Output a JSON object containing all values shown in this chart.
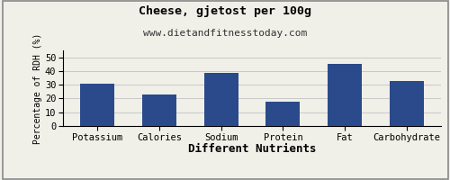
{
  "title": "Cheese, gjetost per 100g",
  "subtitle": "www.dietandfitnesstoday.com",
  "xlabel": "Different Nutrients",
  "ylabel": "Percentage of RDH (%)",
  "categories": [
    "Potassium",
    "Calories",
    "Sodium",
    "Protein",
    "Fat",
    "Carbohydrate"
  ],
  "values": [
    30.5,
    23.0,
    38.5,
    17.5,
    45.0,
    33.0
  ],
  "bar_color": "#2b4a8b",
  "ylim": [
    0,
    55
  ],
  "yticks": [
    0,
    10,
    20,
    30,
    40,
    50
  ],
  "title_fontsize": 9.5,
  "subtitle_fontsize": 8,
  "xlabel_fontsize": 9,
  "ylabel_fontsize": 7,
  "tick_fontsize": 7.5,
  "background_color": "#f0efe8",
  "grid_color": "#c8c8c8",
  "border_color": "#888888"
}
